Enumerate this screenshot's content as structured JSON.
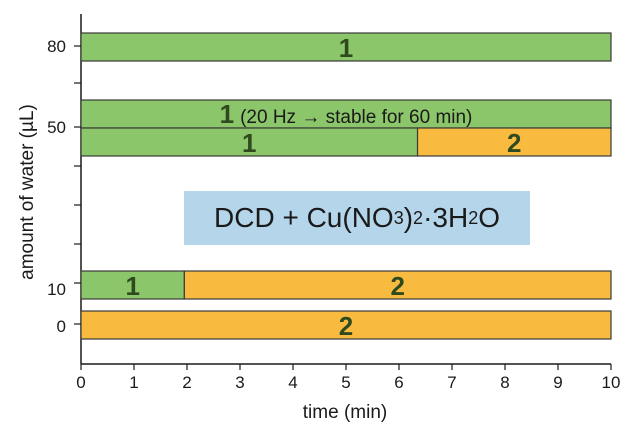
{
  "chart_data": {
    "type": "bar",
    "orientation": "horizontal-stacked",
    "xlabel": "time (min)",
    "ylabel": "amount of water (µL)",
    "xlim": [
      0,
      10
    ],
    "x_ticks": [
      0,
      1,
      2,
      3,
      4,
      5,
      6,
      7,
      8,
      9,
      10
    ],
    "y_ticks": [
      "80",
      "50",
      "10",
      "0"
    ],
    "bars": [
      {
        "water": "80",
        "segments": [
          {
            "start": 0,
            "end": 10,
            "phase": "1",
            "color": "#8cc66a"
          }
        ]
      },
      {
        "water": "50",
        "segments": [
          {
            "start": 0,
            "end": 10,
            "phase": "1",
            "note": "(20 Hz → stable for 60 min)",
            "color": "#8cc66a"
          }
        ]
      },
      {
        "water": "50",
        "segments": [
          {
            "start": 0,
            "end": 6.35,
            "phase": "1",
            "color": "#8cc66a"
          },
          {
            "start": 6.35,
            "end": 10,
            "phase": "2",
            "color": "#f9bb3f"
          }
        ]
      },
      {
        "water": "10",
        "segments": [
          {
            "start": 0,
            "end": 1.95,
            "phase": "1",
            "color": "#8cc66a"
          },
          {
            "start": 1.95,
            "end": 10,
            "phase": "2",
            "color": "#f9bb3f"
          }
        ]
      },
      {
        "water": "0",
        "segments": [
          {
            "start": 0,
            "end": 10,
            "phase": "2",
            "color": "#f9bb3f"
          }
        ]
      }
    ],
    "annotation": {
      "prefix": "DCD + Cu(NO",
      "sub1": "3",
      "mid": ")",
      "sub2": "2",
      "suffix": "·3H",
      "sub3": "2",
      "end": "O"
    },
    "grid": false,
    "legend": "none"
  }
}
